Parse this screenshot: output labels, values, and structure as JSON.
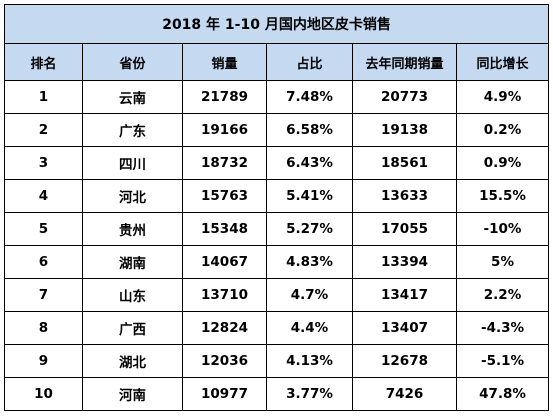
{
  "title": "2018 年 1-10 月国内地区皮卡销售",
  "headers": [
    "排名",
    "省份",
    "销量",
    "占比",
    "去年同期销量",
    "同比增长"
  ],
  "rows": [
    [
      "1",
      "云南",
      "21789",
      "7.48%",
      "20773",
      "4.9%"
    ],
    [
      "2",
      "广东",
      "19166",
      "6.58%",
      "19138",
      "0.2%"
    ],
    [
      "3",
      "四川",
      "18732",
      "6.43%",
      "18561",
      "0.9%"
    ],
    [
      "4",
      "河北",
      "15763",
      "5.41%",
      "13633",
      "15.5%"
    ],
    [
      "5",
      "贵州",
      "15348",
      "5.27%",
      "17055",
      "-10%"
    ],
    [
      "6",
      "湖南",
      "14067",
      "4.83%",
      "13394",
      "5%"
    ],
    [
      "7",
      "山东",
      "13710",
      "4.7%",
      "13417",
      "2.2%"
    ],
    [
      "8",
      "广西",
      "12824",
      "4.4%",
      "13407",
      "-4.3%"
    ],
    [
      "9",
      "湖北",
      "12036",
      "4.13%",
      "12678",
      "-5.1%"
    ],
    [
      "10",
      "河南",
      "10977",
      "3.77%",
      "7426",
      "47.8%"
    ]
  ],
  "colors": {
    "header_bg": "#c5d9f1",
    "border": "#000000"
  }
}
